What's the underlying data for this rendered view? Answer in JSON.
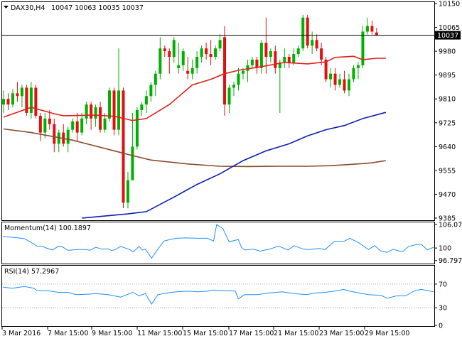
{
  "chart_data": [
    {
      "type": "candlestick",
      "header": {
        "symbol_tf": "DAX30,H4",
        "ohlc": "10047 10063 10035 10037"
      },
      "current_price": {
        "value": 10037,
        "label": "10037"
      },
      "y_ticks": [
        10150,
        10065,
        9980,
        9895,
        9810,
        9725,
        9640,
        9555,
        9470,
        9385
      ],
      "ylim": [
        9385,
        10150
      ],
      "x_tick_labels": [
        "3 Mar 2016",
        "7 Mar 15:00",
        "9 Mar 15:00",
        "11 Mar 15:00",
        "15 Mar 15:00",
        "17 Mar 15:00",
        "21 Mar 15:00",
        "23 Mar 15:00",
        "29 Mar 15:00"
      ],
      "colors": {
        "bull": "#00b000",
        "bear": "#e01010",
        "sma_fast": "#e0201a",
        "sma_mid": "#0a1fb0",
        "sma_slow": "#8b4a2b"
      },
      "candles": [
        [
          9790,
          9840,
          9760,
          9810
        ],
        [
          9810,
          9830,
          9770,
          9790
        ],
        [
          9790,
          9845,
          9780,
          9830
        ],
        [
          9830,
          9870,
          9800,
          9820
        ],
        [
          9820,
          9860,
          9780,
          9850
        ],
        [
          9850,
          9860,
          9750,
          9760
        ],
        [
          9760,
          9870,
          9740,
          9850
        ],
        [
          9850,
          9860,
          9740,
          9750
        ],
        [
          9750,
          9760,
          9660,
          9690
        ],
        [
          9690,
          9760,
          9670,
          9740
        ],
        [
          9740,
          9770,
          9700,
          9720
        ],
        [
          9720,
          9740,
          9620,
          9650
        ],
        [
          9650,
          9700,
          9620,
          9690
        ],
        [
          9690,
          9720,
          9640,
          9650
        ],
        [
          9650,
          9710,
          9620,
          9700
        ],
        [
          9700,
          9740,
          9690,
          9730
        ],
        [
          9730,
          9760,
          9660,
          9690
        ],
        [
          9690,
          9760,
          9680,
          9740
        ],
        [
          9740,
          9800,
          9720,
          9790
        ],
        [
          9790,
          9800,
          9700,
          9740
        ],
        [
          9740,
          9790,
          9710,
          9780
        ],
        [
          9780,
          9800,
          9690,
          9700
        ],
        [
          9700,
          9760,
          9690,
          9740
        ],
        [
          9740,
          9850,
          9730,
          9840
        ],
        [
          9840,
          9850,
          9680,
          9700
        ],
        [
          9700,
          9990,
          9680,
          9840
        ],
        [
          9840,
          9850,
          9420,
          9440
        ],
        [
          9440,
          9550,
          9420,
          9520
        ],
        [
          9520,
          9760,
          9520,
          9640
        ],
        [
          9640,
          9780,
          9630,
          9770
        ],
        [
          9770,
          9800,
          9750,
          9790
        ],
        [
          9790,
          9840,
          9760,
          9820
        ],
        [
          9820,
          9870,
          9800,
          9860
        ],
        [
          9860,
          9910,
          9820,
          9900
        ],
        [
          9900,
          10030,
          9880,
          9990
        ],
        [
          9990,
          10000,
          9960,
          9980
        ],
        [
          9980,
          9990,
          9900,
          9960
        ],
        [
          9960,
          10030,
          9940,
          10020
        ],
        [
          9920,
          10010,
          9900,
          9930
        ],
        [
          9930,
          9990,
          9910,
          9980
        ],
        [
          9910,
          9960,
          9880,
          9900
        ],
        [
          9900,
          9950,
          9880,
          9920
        ],
        [
          9920,
          9980,
          9900,
          9960
        ],
        [
          9960,
          10000,
          9940,
          9990
        ],
        [
          9990,
          10010,
          9950,
          9970
        ],
        [
          9970,
          10020,
          9930,
          9960
        ],
        [
          9960,
          10000,
          9950,
          9990
        ],
        [
          9990,
          10040,
          9980,
          10020
        ],
        [
          10030,
          10070,
          9750,
          9790
        ],
        [
          9790,
          9860,
          9760,
          9850
        ],
        [
          9850,
          9870,
          9820,
          9860
        ],
        [
          9860,
          9920,
          9840,
          9900
        ],
        [
          9900,
          9920,
          9880,
          9910
        ],
        [
          9910,
          9950,
          9870,
          9930
        ],
        [
          9930,
          9960,
          9920,
          9950
        ],
        [
          9950,
          9960,
          9900,
          9920
        ],
        [
          9920,
          10020,
          9900,
          10010
        ],
        [
          10010,
          10100,
          9900,
          9960
        ],
        [
          9960,
          9990,
          9940,
          9980
        ],
        [
          9980,
          10000,
          9900,
          9920
        ],
        [
          9920,
          9950,
          9760,
          9940
        ],
        [
          9940,
          9990,
          9920,
          9960
        ],
        [
          9960,
          9970,
          9920,
          9940
        ],
        [
          9940,
          9990,
          9930,
          9970
        ],
        [
          9970,
          10000,
          9960,
          9990
        ],
        [
          9990,
          10110,
          9980,
          10100
        ],
        [
          10100,
          10110,
          9990,
          10000
        ],
        [
          10000,
          10050,
          9970,
          10020
        ],
        [
          10020,
          10040,
          9980,
          9990
        ],
        [
          9990,
          10010,
          9930,
          9950
        ],
        [
          9950,
          9960,
          9870,
          9880
        ],
        [
          9880,
          9920,
          9850,
          9900
        ],
        [
          9900,
          9920,
          9840,
          9860
        ],
        [
          9860,
          9900,
          9850,
          9880
        ],
        [
          9880,
          9910,
          9830,
          9840
        ],
        [
          9840,
          9900,
          9820,
          9880
        ],
        [
          9880,
          9930,
          9870,
          9920
        ],
        [
          9920,
          9940,
          9880,
          9930
        ],
        [
          9930,
          10070,
          9920,
          10050
        ],
        [
          10050,
          10100,
          10040,
          10070
        ],
        [
          10070,
          10090,
          10040,
          10050
        ],
        [
          10047,
          10063,
          10035,
          10037
        ]
      ],
      "sma_fast": [
        [
          0,
          9745
        ],
        [
          6,
          9780
        ],
        [
          11,
          9757
        ],
        [
          13,
          9750
        ],
        [
          20,
          9752
        ],
        [
          24,
          9748
        ],
        [
          28,
          9733
        ],
        [
          31,
          9740
        ],
        [
          36,
          9790
        ],
        [
          41,
          9860
        ],
        [
          45,
          9880
        ],
        [
          48,
          9900
        ],
        [
          51,
          9912
        ],
        [
          56,
          9925
        ],
        [
          61,
          9940
        ],
        [
          66,
          9935
        ],
        [
          70,
          9942
        ],
        [
          72,
          9958
        ],
        [
          76,
          9962
        ],
        [
          78,
          9950
        ],
        [
          81,
          9955
        ],
        [
          83,
          9955
        ]
      ],
      "sma_mid": [
        [
          17,
          9385
        ],
        [
          27,
          9400
        ],
        [
          31,
          9408
        ],
        [
          37,
          9460
        ],
        [
          42,
          9505
        ],
        [
          47,
          9543
        ],
        [
          52,
          9590
        ],
        [
          57,
          9625
        ],
        [
          62,
          9650
        ],
        [
          66,
          9678
        ],
        [
          70,
          9700
        ],
        [
          74,
          9715
        ],
        [
          78,
          9740
        ],
        [
          83,
          9762
        ]
      ],
      "sma_slow": [
        [
          0,
          9703
        ],
        [
          6,
          9690
        ],
        [
          15,
          9663
        ],
        [
          24,
          9625
        ],
        [
          28,
          9608
        ],
        [
          32,
          9592
        ],
        [
          40,
          9578
        ],
        [
          47,
          9570
        ],
        [
          53,
          9569
        ],
        [
          60,
          9570
        ],
        [
          66,
          9570
        ],
        [
          71,
          9572
        ],
        [
          76,
          9577
        ],
        [
          80,
          9582
        ],
        [
          83,
          9590
        ]
      ]
    },
    {
      "type": "line",
      "label": "Momentum(14) 100.1897",
      "y_ticks": [
        "106.078",
        "100",
        "96.7978"
      ],
      "ylim": [
        96.2,
        106.4
      ],
      "values": [
        [
          0,
          103.0
        ],
        [
          5,
          102.6
        ],
        [
          7,
          102.4
        ],
        [
          10,
          101.0
        ],
        [
          11,
          100.5
        ],
        [
          13,
          100.4
        ],
        [
          14,
          100.0
        ],
        [
          16,
          99.5
        ],
        [
          18,
          100.5
        ],
        [
          19,
          100.4
        ],
        [
          21,
          99.4
        ],
        [
          24,
          99.6
        ],
        [
          27,
          99.6
        ],
        [
          28,
          99.4
        ],
        [
          30,
          100.2
        ],
        [
          32,
          99.7
        ],
        [
          34,
          99.8
        ],
        [
          35,
          99.4
        ],
        [
          36,
          99.5
        ],
        [
          38,
          100.4
        ],
        [
          41,
          99.6
        ],
        [
          42,
          99.0
        ],
        [
          44,
          100.4
        ],
        [
          45,
          99.5
        ],
        [
          46,
          99.7
        ],
        [
          48,
          97.4
        ],
        [
          50,
          99.7
        ],
        [
          52,
          101.8
        ],
        [
          54,
          102.2
        ],
        [
          56,
          102.5
        ],
        [
          59,
          102.6
        ],
        [
          63,
          102.5
        ],
        [
          66,
          102.5
        ],
        [
          68,
          101.8
        ],
        [
          69,
          106.0
        ],
        [
          71,
          105.0
        ],
        [
          73,
          101.6
        ],
        [
          76,
          102.2
        ],
        [
          77,
          100.2
        ],
        [
          78,
          99.5
        ],
        [
          81,
          99.7
        ],
        [
          83,
          99.2
        ],
        [
          86,
          99.7
        ],
        [
          89,
          100.5
        ],
        [
          92,
          99.5
        ],
        [
          94,
          100.6
        ],
        [
          97,
          99.7
        ],
        [
          99,
          99.6
        ],
        [
          102,
          99.9
        ],
        [
          104,
          99.6
        ],
        [
          107,
          101.7
        ],
        [
          110,
          101.7
        ],
        [
          112,
          102.5
        ],
        [
          115,
          101.3
        ],
        [
          118,
          99.6
        ],
        [
          120,
          100.6
        ],
        [
          122,
          99.2
        ],
        [
          124,
          98.9
        ],
        [
          126,
          99.7
        ],
        [
          128,
          99.2
        ],
        [
          129,
          99.1
        ],
        [
          131,
          100.4
        ],
        [
          133,
          100.8
        ],
        [
          135,
          101.0
        ],
        [
          137,
          99.5
        ],
        [
          139,
          100.2
        ]
      ]
    },
    {
      "type": "line",
      "label": "RSI(14) 57.2967",
      "y_ticks": [
        "70",
        "30",
        "0"
      ],
      "ylim": [
        0,
        100
      ],
      "values": [
        [
          0,
          65
        ],
        [
          3,
          63
        ],
        [
          7,
          66
        ],
        [
          10,
          63
        ],
        [
          11,
          59
        ],
        [
          14,
          59
        ],
        [
          18,
          56
        ],
        [
          21,
          56
        ],
        [
          23,
          53
        ],
        [
          24,
          52
        ],
        [
          28,
          53
        ],
        [
          30,
          54
        ],
        [
          32,
          53
        ],
        [
          34,
          52
        ],
        [
          38,
          48
        ],
        [
          42,
          56
        ],
        [
          44,
          50
        ],
        [
          46,
          54
        ],
        [
          48,
          36
        ],
        [
          50,
          52
        ],
        [
          53,
          55
        ],
        [
          56,
          57
        ],
        [
          60,
          58
        ],
        [
          63,
          57
        ],
        [
          66,
          58
        ],
        [
          68,
          60
        ],
        [
          70,
          59
        ],
        [
          72,
          59
        ],
        [
          75,
          58
        ],
        [
          76,
          45
        ],
        [
          78,
          52
        ],
        [
          82,
          52
        ],
        [
          86,
          55
        ],
        [
          90,
          57
        ],
        [
          94,
          54
        ],
        [
          98,
          52
        ],
        [
          101,
          55
        ],
        [
          104,
          56
        ],
        [
          107,
          58
        ],
        [
          110,
          61
        ],
        [
          112,
          58
        ],
        [
          115,
          55
        ],
        [
          118,
          52
        ],
        [
          122,
          51
        ],
        [
          124,
          46
        ],
        [
          127,
          50
        ],
        [
          130,
          50
        ],
        [
          133,
          59
        ],
        [
          135,
          61
        ],
        [
          137,
          59
        ],
        [
          139,
          57
        ]
      ]
    }
  ]
}
